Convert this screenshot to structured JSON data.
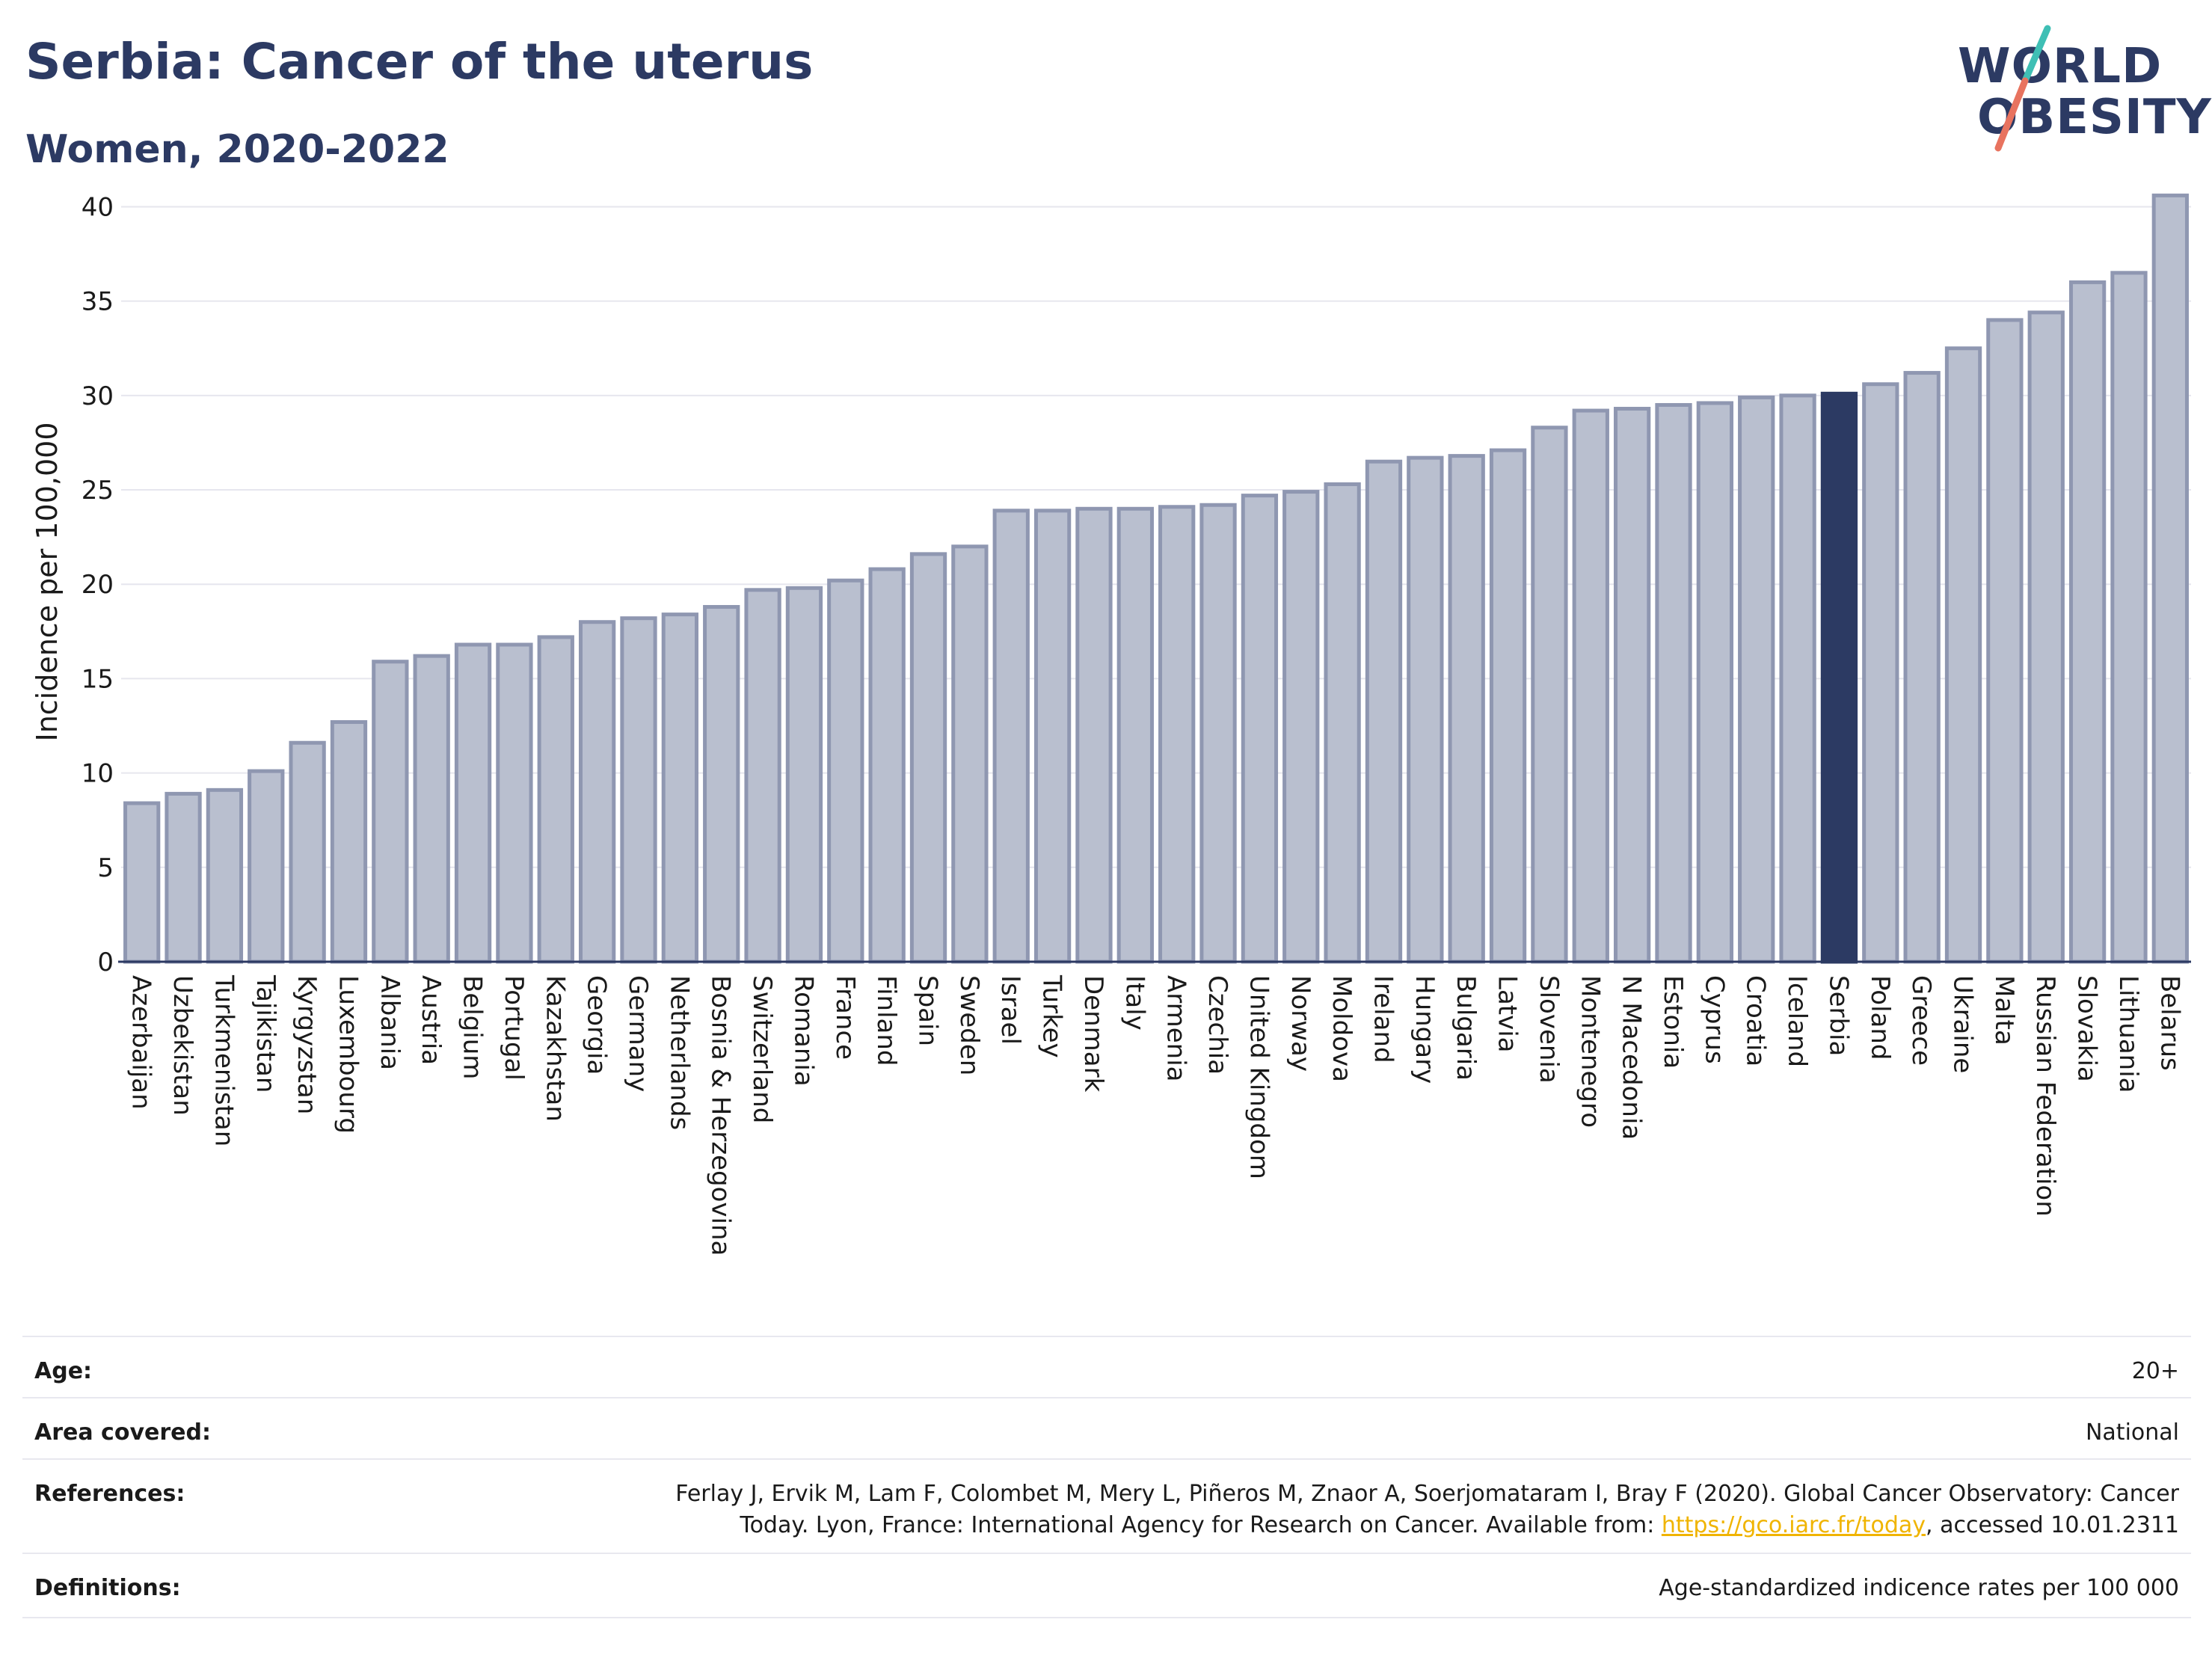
{
  "header": {
    "title": "Serbia: Cancer of the uterus",
    "subtitle": "Women, 2020-2022"
  },
  "logo": {
    "line1": "WORLD",
    "line2": "OBESITY"
  },
  "colors": {
    "highlight": "#2c3a63",
    "bar_fill": "#b9bfcf",
    "bar_stroke": "#8f97b1",
    "grid": "#e6e6ee",
    "accent_teal": "#3fbfb5",
    "accent_coral": "#e8735f",
    "link": "#f0b400"
  },
  "chart_data": {
    "type": "bar",
    "ylabel": "Incidence per 100,000",
    "xlabel": "",
    "ylim": [
      0,
      42
    ],
    "yticks": [
      0,
      5,
      10,
      15,
      20,
      25,
      30,
      35,
      40
    ],
    "grid": true,
    "highlight": "Serbia",
    "categories": [
      "Azerbaijan",
      "Uzbekistan",
      "Turkmenistan",
      "Tajikistan",
      "Kyrgyzstan",
      "Luxembourg",
      "Albania",
      "Austria",
      "Belgium",
      "Portugal",
      "Kazakhstan",
      "Georgia",
      "Germany",
      "Netherlands",
      "Bosnia & Herzegovina",
      "Switzerland",
      "Romania",
      "France",
      "Finland",
      "Spain",
      "Sweden",
      "Israel",
      "Turkey",
      "Denmark",
      "Italy",
      "Armenia",
      "Czechia",
      "United Kingdom",
      "Norway",
      "Moldova",
      "Ireland",
      "Hungary",
      "Bulgaria",
      "Latvia",
      "Slovenia",
      "Montenegro",
      "N Macedonia",
      "Estonia",
      "Cyprus",
      "Croatia",
      "Iceland",
      "Serbia",
      "Poland",
      "Greece",
      "Ukraine",
      "Malta",
      "Russian Federation",
      "Slovakia",
      "Lithuania",
      "Belarus"
    ],
    "values": [
      8.4,
      8.9,
      9.1,
      10.1,
      11.6,
      12.7,
      15.9,
      16.2,
      16.8,
      16.8,
      17.2,
      18.0,
      18.2,
      18.4,
      18.8,
      19.7,
      19.8,
      20.2,
      20.8,
      21.6,
      22.0,
      23.9,
      23.9,
      24.0,
      24.0,
      24.1,
      24.2,
      24.7,
      24.9,
      25.3,
      26.5,
      26.7,
      26.8,
      27.1,
      28.3,
      29.2,
      29.3,
      29.5,
      29.6,
      29.9,
      30.0,
      30.1,
      30.6,
      31.2,
      32.5,
      34.0,
      34.4,
      36.0,
      36.5,
      40.6
    ]
  },
  "info": {
    "age_label": "Age:",
    "age_value": "20+",
    "area_label": "Area covered:",
    "area_value": "National",
    "references_label": "References:",
    "references_line1": "Ferlay J, Ervik M, Lam F, Colombet M, Mery L, Piñeros M, Znaor A, Soerjomataram I, Bray F (2020). Global Cancer Observatory: Cancer",
    "references_line2a": "Today. Lyon, France: International Agency for Research on Cancer. Available from: ",
    "references_link": "https://gco.iarc.fr/today",
    "references_line2b": ", accessed 10.01.2311",
    "definitions_label": "Definitions:",
    "definitions_value": "Age-standardized indicence rates per 100 000"
  }
}
